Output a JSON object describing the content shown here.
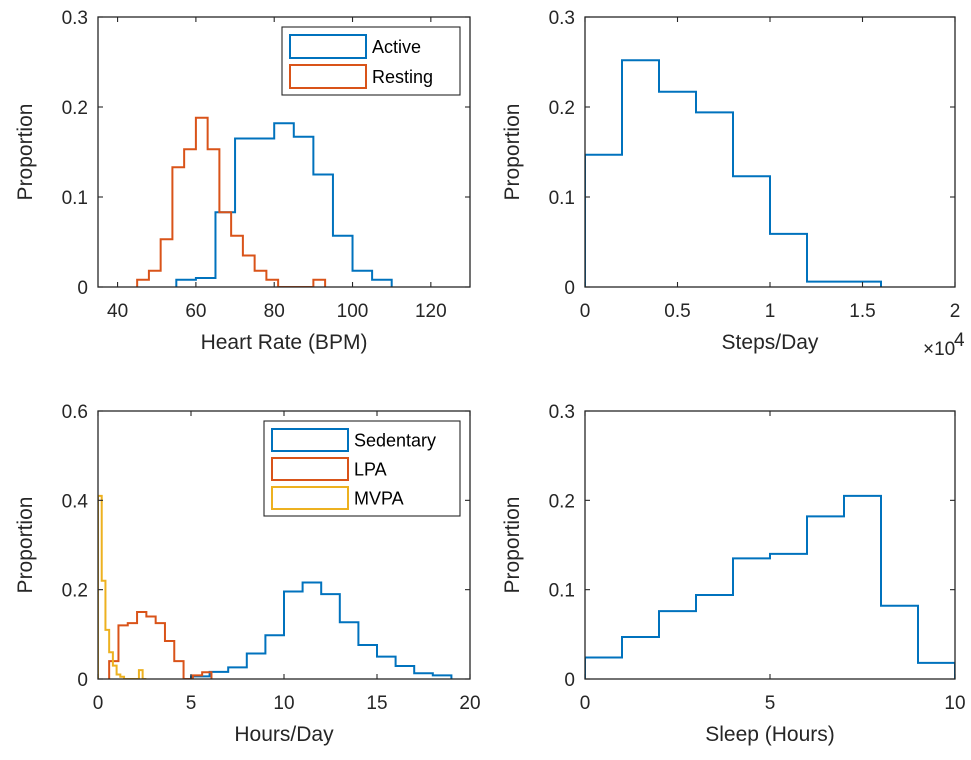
{
  "chart_data": [
    {
      "type": "histogram",
      "xlabel": "Heart Rate (BPM)",
      "ylabel": "Proportion",
      "xlim": [
        35,
        130
      ],
      "ylim": [
        0,
        0.3
      ],
      "xticks": [
        40,
        60,
        80,
        100,
        120
      ],
      "xtick_labels": [
        "40",
        "60",
        "80",
        "100",
        "120"
      ],
      "yticks": [
        0,
        0.1,
        0.2,
        0.3
      ],
      "ytick_labels": [
        "0",
        "0.1",
        "0.2",
        "0.3"
      ],
      "legend": "top-right",
      "series": [
        {
          "name": "Active",
          "color": "#0072BD",
          "edges": [
            55,
            60,
            65,
            70,
            75,
            80,
            85,
            90,
            95,
            100,
            105,
            110
          ],
          "values": [
            0.008,
            0.01,
            0.083,
            0.165,
            0.165,
            0.182,
            0.167,
            0.125,
            0.057,
            0.018,
            0.008
          ]
        },
        {
          "name": "Resting",
          "color": "#D95319",
          "edges": [
            45,
            48,
            51,
            54,
            57,
            60,
            63,
            66,
            69,
            72,
            75,
            78,
            81,
            84,
            87,
            90,
            93
          ],
          "values": [
            0.008,
            0.018,
            0.053,
            0.133,
            0.153,
            0.188,
            0.153,
            0.083,
            0.057,
            0.035,
            0.018,
            0.008,
            0,
            0,
            0,
            0.008
          ]
        }
      ]
    },
    {
      "type": "histogram",
      "xlabel": "Steps/Day",
      "ylabel": "Proportion",
      "xlim": [
        0,
        20000
      ],
      "ylim": [
        0,
        0.3
      ],
      "xticks": [
        0,
        5000,
        10000,
        15000,
        20000
      ],
      "xtick_labels": [
        "0",
        "0.5",
        "1",
        "1.5",
        "2"
      ],
      "yticks": [
        0,
        0.1,
        0.2,
        0.3
      ],
      "ytick_labels": [
        "0",
        "0.1",
        "0.2",
        "0.3"
      ],
      "exponent_label": "×10",
      "exponent_power": "4",
      "series": [
        {
          "color": "#0072BD",
          "edges": [
            0,
            2000,
            4000,
            6000,
            8000,
            10000,
            12000,
            14000,
            16000
          ],
          "values": [
            0.147,
            0.252,
            0.217,
            0.194,
            0.123,
            0.059,
            0.006,
            0.006
          ]
        }
      ]
    },
    {
      "type": "histogram",
      "xlabel": "Hours/Day",
      "ylabel": "Proportion",
      "xlim": [
        0,
        20
      ],
      "ylim": [
        0,
        0.6
      ],
      "xticks": [
        0,
        5,
        10,
        15,
        20
      ],
      "xtick_labels": [
        "0",
        "5",
        "10",
        "15",
        "20"
      ],
      "yticks": [
        0,
        0.2,
        0.4,
        0.6
      ],
      "ytick_labels": [
        "0",
        "0.2",
        "0.4",
        "0.6"
      ],
      "legend": "top-right",
      "series": [
        {
          "name": "Sedentary",
          "color": "#0072BD",
          "edges": [
            5,
            6,
            7,
            8,
            9,
            10,
            11,
            12,
            13,
            14,
            15,
            16,
            17,
            18,
            19
          ],
          "values": [
            0.006,
            0.016,
            0.026,
            0.057,
            0.098,
            0.196,
            0.216,
            0.19,
            0.127,
            0.076,
            0.05,
            0.029,
            0.013,
            0.008
          ]
        },
        {
          "name": "LPA",
          "color": "#D95319",
          "edges": [
            0.6,
            1.1,
            1.6,
            2.1,
            2.6,
            3.1,
            3.6,
            4.1,
            4.6,
            5.1,
            5.6,
            6.1
          ],
          "values": [
            0.04,
            0.12,
            0.125,
            0.15,
            0.14,
            0.125,
            0.085,
            0.04,
            0,
            0.008,
            0.015
          ]
        },
        {
          "name": "MVPA",
          "color": "#EDB120",
          "edges": [
            0,
            0.2,
            0.4,
            0.6,
            0.8,
            1.0,
            1.2,
            1.4,
            1.6,
            1.8,
            2.0,
            2.2,
            2.4,
            2.6
          ],
          "values": [
            0.41,
            0.22,
            0.11,
            0.06,
            0.03,
            0.01,
            0.005,
            0,
            0,
            0,
            0,
            0.02,
            0
          ]
        }
      ]
    },
    {
      "type": "histogram",
      "xlabel": "Sleep (Hours)",
      "ylabel": "Proportion",
      "xlim": [
        0,
        10
      ],
      "ylim": [
        0,
        0.3
      ],
      "xticks": [
        0,
        5,
        10
      ],
      "xtick_labels": [
        "0",
        "5",
        "10"
      ],
      "yticks": [
        0,
        0.1,
        0.2,
        0.3
      ],
      "ytick_labels": [
        "0",
        "0.1",
        "0.2",
        "0.3"
      ],
      "series": [
        {
          "color": "#0072BD",
          "edges": [
            0,
            1,
            2,
            3,
            4,
            5,
            6,
            7,
            8,
            9,
            10
          ],
          "values": [
            0.024,
            0.047,
            0.076,
            0.094,
            0.135,
            0.14,
            0.182,
            0.205,
            0.082,
            0.018
          ]
        }
      ]
    }
  ]
}
